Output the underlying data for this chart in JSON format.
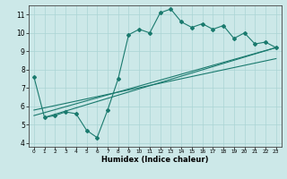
{
  "xlabel": "Humidex (Indice chaleur)",
  "bg_color": "#cce8e8",
  "line_color": "#1a7a6e",
  "grid_color": "#aad4d4",
  "xlim": [
    -0.5,
    23.5
  ],
  "ylim": [
    3.8,
    11.5
  ],
  "xticks": [
    0,
    1,
    2,
    3,
    4,
    5,
    6,
    7,
    8,
    9,
    10,
    11,
    12,
    13,
    14,
    15,
    16,
    17,
    18,
    19,
    20,
    21,
    22,
    23
  ],
  "yticks": [
    4,
    5,
    6,
    7,
    8,
    9,
    10,
    11
  ],
  "curve1_x": [
    0,
    1,
    2,
    3,
    4,
    5,
    6,
    7,
    8,
    9,
    10,
    11,
    12,
    13,
    14,
    15,
    16,
    17,
    18,
    19,
    20,
    21,
    22,
    23
  ],
  "curve1_y": [
    7.6,
    5.4,
    5.5,
    5.7,
    5.6,
    4.7,
    4.3,
    5.8,
    7.5,
    9.9,
    10.2,
    10.0,
    11.1,
    11.3,
    10.6,
    10.3,
    10.5,
    10.2,
    10.4,
    9.7,
    10.0,
    9.4,
    9.5,
    9.2
  ],
  "line2_x": [
    0,
    23
  ],
  "line2_y": [
    5.5,
    9.2
  ],
  "line3_x": [
    0,
    23
  ],
  "line3_y": [
    5.8,
    8.6
  ],
  "line4_x": [
    1,
    23
  ],
  "line4_y": [
    5.4,
    9.2
  ]
}
